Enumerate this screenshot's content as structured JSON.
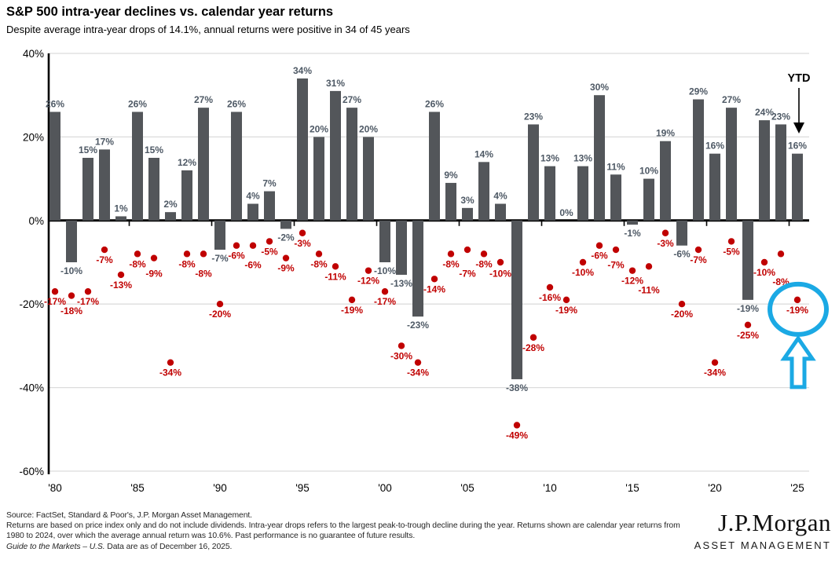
{
  "header": {
    "title": "S&P 500 intra-year declines vs. calendar year returns",
    "subtitle": "Despite average intra-year drops of 14.1%, annual returns were positive in 34 of 45 years"
  },
  "chart_data": {
    "type": "bar",
    "title": "S&P 500 intra-year declines vs. calendar year returns",
    "x": [
      1980,
      1981,
      1982,
      1983,
      1984,
      1985,
      1986,
      1987,
      1988,
      1989,
      1990,
      1991,
      1992,
      1993,
      1994,
      1995,
      1996,
      1997,
      1998,
      1999,
      2000,
      2001,
      2002,
      2003,
      2004,
      2005,
      2006,
      2007,
      2008,
      2009,
      2010,
      2011,
      2012,
      2013,
      2014,
      2015,
      2016,
      2017,
      2018,
      2019,
      2020,
      2021,
      2022,
      2023,
      2024,
      2025
    ],
    "series": [
      {
        "name": "Calendar year return",
        "type": "bar",
        "values": [
          26,
          -10,
          15,
          17,
          1,
          26,
          15,
          2,
          12,
          27,
          -7,
          26,
          4,
          7,
          -2,
          34,
          20,
          31,
          27,
          20,
          -10,
          -13,
          -23,
          26,
          9,
          3,
          14,
          4,
          -38,
          23,
          13,
          0,
          13,
          30,
          11,
          -1,
          10,
          19,
          -6,
          29,
          16,
          27,
          -19,
          24,
          23,
          16
        ]
      },
      {
        "name": "Intra-year decline",
        "type": "scatter",
        "values": [
          -17,
          -18,
          -17,
          -7,
          -13,
          -8,
          -9,
          -34,
          -8,
          -8,
          -20,
          -6,
          -6,
          -5,
          -9,
          -3,
          -8,
          -11,
          -19,
          -12,
          -17,
          -30,
          -34,
          -14,
          -8,
          -7,
          -8,
          -10,
          -49,
          -28,
          -16,
          -19,
          -10,
          -6,
          -7,
          -12,
          -11,
          -3,
          -20,
          -7,
          -34,
          -5,
          -25,
          -10,
          -8,
          -19
        ]
      }
    ],
    "x_tick_labels": [
      {
        "year": 1980,
        "label": "'80"
      },
      {
        "year": 1985,
        "label": "'85"
      },
      {
        "year": 1990,
        "label": "'90"
      },
      {
        "year": 1995,
        "label": "'95"
      },
      {
        "year": 2000,
        "label": "'00"
      },
      {
        "year": 2005,
        "label": "'05"
      },
      {
        "year": 2010,
        "label": "'10"
      },
      {
        "year": 2015,
        "label": "'15"
      },
      {
        "year": 2020,
        "label": "'20"
      },
      {
        "year": 2025,
        "label": "'25"
      }
    ],
    "ylim": [
      -60,
      40
    ],
    "y_tick_values": [
      40,
      20,
      0,
      -20,
      -40,
      -60
    ],
    "y_tick_labels": [
      "40%",
      "20%",
      "0%",
      "-20%",
      "-40%",
      "-60%"
    ],
    "grid": true,
    "legend": "none",
    "annotations": {
      "ytd_label": "YTD",
      "ytd_year": 2025,
      "ytd_bar_value": 16,
      "highlight_circle_year": 2025,
      "highlight_circle_value": -19
    }
  },
  "colors": {
    "bar": "#53565A",
    "bar_label": "#4E5965",
    "decline": "#C00000",
    "highlight_blue": "#1BA9E4",
    "gridline": "#DCDCDC",
    "axis": "#000000"
  },
  "footer": {
    "line1": "Source: FactSet, Standard & Poor's, J.P. Morgan Asset Management.",
    "line2": "Returns are based on price index only and do not include dividends. Intra-year drops refers to the largest peak-to-trough decline during the year. Returns shown are calendar year returns from 1980 to 2024, over which the average annual return was 10.6%. Past performance is no guarantee of future results.",
    "line3_italic": "Guide to the Markets – U.S.",
    "line3_rest": " Data are as of December 16, 2025."
  },
  "logo": {
    "brand": "J.P.Morgan",
    "division": "ASSET MANAGEMENT"
  }
}
